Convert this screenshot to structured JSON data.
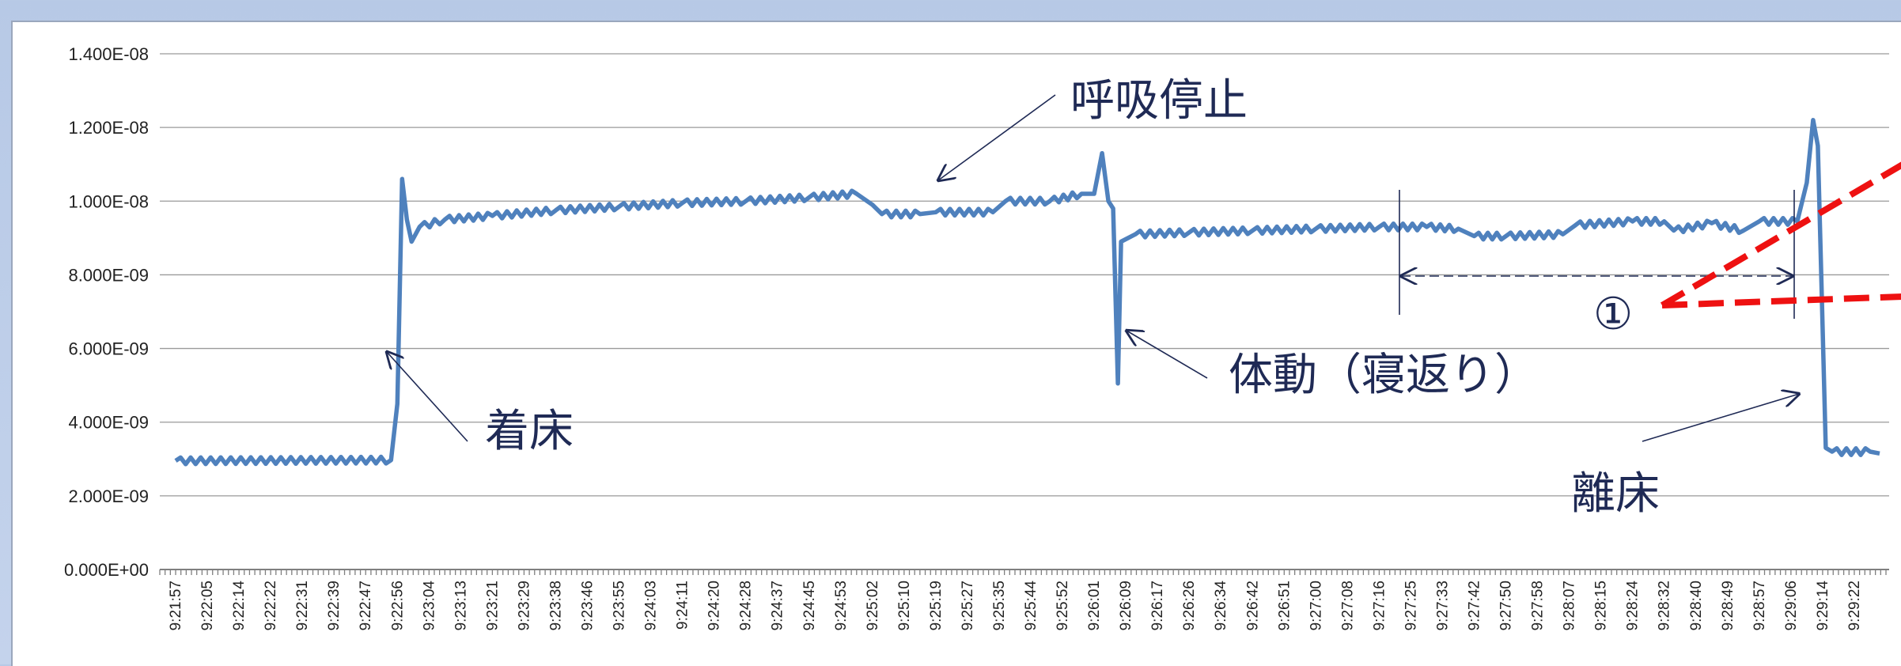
{
  "chart_data": {
    "type": "line",
    "title": "",
    "xlabel": "",
    "ylabel": "",
    "ylim": [
      0,
      1.4e-08
    ],
    "grid": true,
    "legend": "none",
    "y_tick_labels": [
      "0.000E+00",
      "2.000E-09",
      "4.000E-09",
      "6.000E-09",
      "8.000E-09",
      "1.000E-08",
      "1.200E-08",
      "1.400E-08"
    ],
    "y_tick_values": [
      0,
      2e-09,
      4e-09,
      6e-09,
      8e-09,
      1e-08,
      1.2e-08,
      1.4e-08
    ],
    "x_tick_labels": [
      "9:21:57",
      "9:22:05",
      "9:22:14",
      "9:22:22",
      "9:22:31",
      "9:22:39",
      "9:22:47",
      "9:22:56",
      "9:23:04",
      "9:23:13",
      "9:23:21",
      "9:23:29",
      "9:23:38",
      "9:23:46",
      "9:23:55",
      "9:24:03",
      "9:24:11",
      "9:24:20",
      "9:24:28",
      "9:24:37",
      "9:24:45",
      "9:24:53",
      "9:25:02",
      "9:25:10",
      "9:25:19",
      "9:25:27",
      "9:25:35",
      "9:25:44",
      "9:25:52",
      "9:26:01",
      "9:26:09",
      "9:26:17",
      "9:26:26",
      "9:26:34",
      "9:26:42",
      "9:26:51",
      "9:27:00",
      "9:27:08",
      "9:27:16",
      "9:27:25",
      "9:27:33",
      "9:27:42",
      "9:27:50",
      "9:27:58",
      "9:28:07",
      "9:28:15",
      "9:28:24",
      "9:28:32",
      "9:28:40",
      "9:28:49",
      "9:28:57",
      "9:29:06",
      "9:29:14",
      "9:29:22"
    ],
    "series": [
      {
        "color": "#4f81bd",
        "points": [
          [
            0,
            2.95e-09
          ],
          [
            6.8,
            2.97e-09
          ],
          [
            7.0,
            4.5e-09
          ],
          [
            7.15,
            1.06e-08
          ],
          [
            7.3,
            9.5e-09
          ],
          [
            7.45,
            8.9e-09
          ],
          [
            7.7,
            9.3e-09
          ],
          [
            8.5,
            9.5e-09
          ],
          [
            10,
            9.6e-09
          ],
          [
            12,
            9.75e-09
          ],
          [
            14,
            9.85e-09
          ],
          [
            16,
            9.95e-09
          ],
          [
            18,
            1e-08
          ],
          [
            20,
            1.01e-08
          ],
          [
            21.5,
            1.02e-08
          ],
          [
            22.0,
            9.9e-09
          ],
          [
            22.3,
            9.65e-09
          ],
          [
            23.5,
            9.65e-09
          ],
          [
            24,
            9.7e-09
          ],
          [
            25.8,
            9.7e-09
          ],
          [
            26.2,
            1e-08
          ],
          [
            27.6,
            1e-08
          ],
          [
            28.6,
            1.02e-08
          ],
          [
            29.0,
            1.02e-08
          ],
          [
            29.25,
            1.13e-08
          ],
          [
            29.45,
            1e-08
          ],
          [
            29.6,
            9.8e-09
          ],
          [
            29.75,
            5.05e-09
          ],
          [
            29.85,
            8.9e-09
          ],
          [
            30.3,
            9.1e-09
          ],
          [
            32,
            9.15e-09
          ],
          [
            34,
            9.2e-09
          ],
          [
            36,
            9.25e-09
          ],
          [
            38,
            9.3e-09
          ],
          [
            39.5,
            9.3e-09
          ],
          [
            40.5,
            9.25e-09
          ],
          [
            41.0,
            9.05e-09
          ],
          [
            42,
            9.05e-09
          ],
          [
            43.8,
            9.1e-09
          ],
          [
            44.2,
            9.35e-09
          ],
          [
            46,
            9.45e-09
          ],
          [
            47,
            9.45e-09
          ],
          [
            47.3,
            9.2e-09
          ],
          [
            48.5,
            9.4e-09
          ],
          [
            49.5,
            9.2e-09
          ],
          [
            50,
            9.45e-09
          ],
          [
            51.2,
            9.45e-09
          ],
          [
            51.5,
            1.05e-08
          ],
          [
            51.7,
            1.22e-08
          ],
          [
            51.85,
            1.15e-08
          ],
          [
            52.1,
            3.3e-09
          ],
          [
            52.3,
            3.2e-09
          ],
          [
            53.5,
            3.2e-09
          ],
          [
            53.8,
            3.15e-09
          ]
        ]
      }
    ],
    "annotations": [
      {
        "text": "呼吸停止"
      },
      {
        "text": "着床"
      },
      {
        "text": "体動（寝返り）"
      },
      {
        "text": "離床"
      },
      {
        "text": "①"
      }
    ]
  }
}
